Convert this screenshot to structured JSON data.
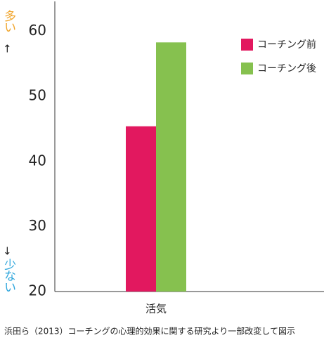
{
  "chart_data": {
    "type": "bar",
    "categories": [
      "活気"
    ],
    "series": [
      {
        "name": "コーチング前",
        "color": "#e2185f",
        "values": [
          45.4
        ]
      },
      {
        "name": "コーチング後",
        "color": "#86c14f",
        "values": [
          58.3
        ]
      }
    ],
    "ylim": [
      20,
      64.6
    ],
    "yticks": [
      20,
      30,
      40,
      50,
      60
    ],
    "grid": false,
    "legend": "top-right",
    "annotations": {
      "high": "多い",
      "low": "少ない"
    },
    "caption": "浜田ら（2013）コーチングの心理的効果に関する研究より一部改変して図示"
  }
}
